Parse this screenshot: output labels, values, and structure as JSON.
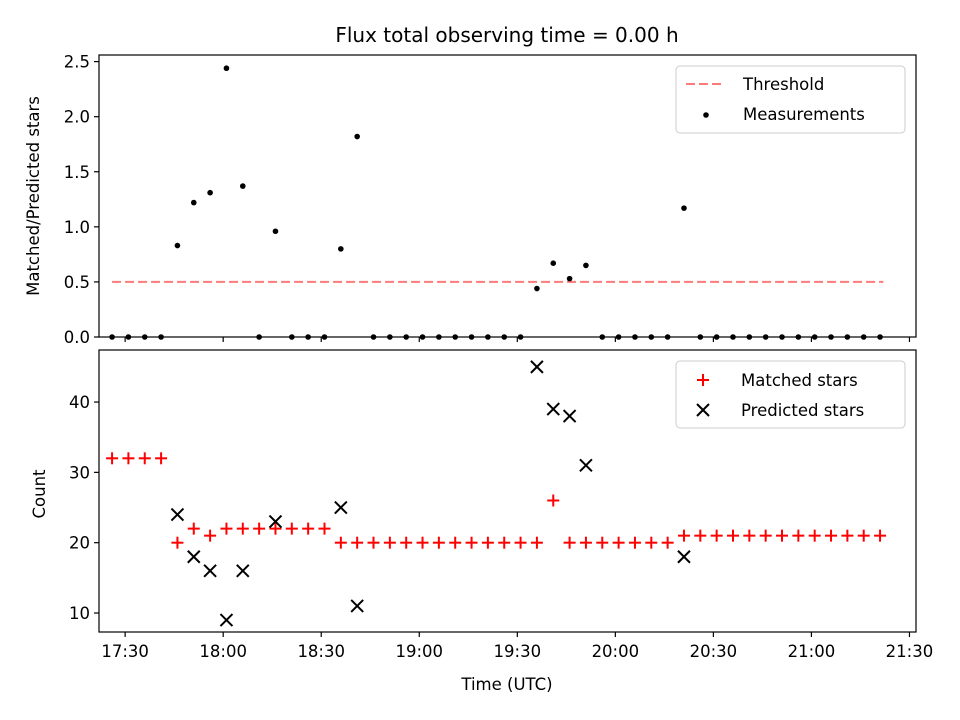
{
  "chart_data": {
    "type": "scatter",
    "title": "Flux total observing time = 0.00 h",
    "xlabel": "Time (UTC)",
    "xlim": [
      "17:22",
      "21:32"
    ],
    "x_ticks": [
      "17:30",
      "18:00",
      "18:30",
      "19:00",
      "19:30",
      "20:00",
      "20:30",
      "21:00",
      "21:30"
    ],
    "panels": [
      {
        "id": "ratio",
        "ylabel": "Matched/Predicted stars",
        "ylim": [
          0,
          2.56
        ],
        "y_ticks": [
          "0.0",
          "0.5",
          "1.0",
          "1.5",
          "2.0",
          "2.5"
        ],
        "legend_position": "upper right",
        "threshold": {
          "name": "Threshold",
          "y": 0.5,
          "x_start": "17:26",
          "x_end": "21:22",
          "color": "#ff7a7a",
          "style": "dashed"
        },
        "series": [
          {
            "name": "Measurements",
            "marker": "dot",
            "color": "#000000",
            "points": [
              [
                "17:26",
                0
              ],
              [
                "17:31",
                0
              ],
              [
                "17:36",
                0
              ],
              [
                "17:41",
                0
              ],
              [
                "17:46",
                0.83
              ],
              [
                "17:51",
                1.22
              ],
              [
                "17:56",
                1.31
              ],
              [
                "18:01",
                2.44
              ],
              [
                "18:06",
                1.37
              ],
              [
                "18:11",
                0
              ],
              [
                "18:16",
                0.96
              ],
              [
                "18:21",
                0
              ],
              [
                "18:26",
                0
              ],
              [
                "18:31",
                0
              ],
              [
                "18:36",
                0.8
              ],
              [
                "18:41",
                1.82
              ],
              [
                "18:46",
                0
              ],
              [
                "18:51",
                0
              ],
              [
                "18:56",
                0
              ],
              [
                "19:01",
                0
              ],
              [
                "19:06",
                0
              ],
              [
                "19:11",
                0
              ],
              [
                "19:16",
                0
              ],
              [
                "19:21",
                0
              ],
              [
                "19:26",
                0
              ],
              [
                "19:31",
                0
              ],
              [
                "19:36",
                0.44
              ],
              [
                "19:41",
                0.67
              ],
              [
                "19:46",
                0.53
              ],
              [
                "19:51",
                0.65
              ],
              [
                "19:56",
                0
              ],
              [
                "20:01",
                0
              ],
              [
                "20:06",
                0
              ],
              [
                "20:11",
                0
              ],
              [
                "20:16",
                0
              ],
              [
                "20:21",
                1.17
              ],
              [
                "20:26",
                0
              ],
              [
                "20:31",
                0
              ],
              [
                "20:36",
                0
              ],
              [
                "20:41",
                0
              ],
              [
                "20:46",
                0
              ],
              [
                "20:51",
                0
              ],
              [
                "20:56",
                0
              ],
              [
                "21:01",
                0
              ],
              [
                "21:06",
                0
              ],
              [
                "21:11",
                0
              ],
              [
                "21:16",
                0
              ],
              [
                "21:21",
                0
              ]
            ]
          }
        ]
      },
      {
        "id": "count",
        "ylabel": "Count",
        "ylim": [
          7.3,
          47.4
        ],
        "y_ticks": [
          "10",
          "20",
          "30",
          "40"
        ],
        "legend_position": "upper right",
        "series": [
          {
            "name": "Matched stars",
            "marker": "plus",
            "color": "#ff0000",
            "points": [
              [
                "17:26",
                32
              ],
              [
                "17:31",
                32
              ],
              [
                "17:36",
                32
              ],
              [
                "17:41",
                32
              ],
              [
                "17:46",
                20
              ],
              [
                "17:51",
                22
              ],
              [
                "17:56",
                21
              ],
              [
                "18:01",
                22
              ],
              [
                "18:06",
                22
              ],
              [
                "18:11",
                22
              ],
              [
                "18:16",
                22
              ],
              [
                "18:21",
                22
              ],
              [
                "18:26",
                22
              ],
              [
                "18:31",
                22
              ],
              [
                "18:36",
                20
              ],
              [
                "18:41",
                20
              ],
              [
                "18:46",
                20
              ],
              [
                "18:51",
                20
              ],
              [
                "18:56",
                20
              ],
              [
                "19:01",
                20
              ],
              [
                "19:06",
                20
              ],
              [
                "19:11",
                20
              ],
              [
                "19:16",
                20
              ],
              [
                "19:21",
                20
              ],
              [
                "19:26",
                20
              ],
              [
                "19:31",
                20
              ],
              [
                "19:36",
                20
              ],
              [
                "19:41",
                26
              ],
              [
                "19:46",
                20
              ],
              [
                "19:51",
                20
              ],
              [
                "19:56",
                20
              ],
              [
                "20:01",
                20
              ],
              [
                "20:06",
                20
              ],
              [
                "20:11",
                20
              ],
              [
                "20:16",
                20
              ],
              [
                "20:21",
                21
              ],
              [
                "20:26",
                21
              ],
              [
                "20:31",
                21
              ],
              [
                "20:36",
                21
              ],
              [
                "20:41",
                21
              ],
              [
                "20:46",
                21
              ],
              [
                "20:51",
                21
              ],
              [
                "20:56",
                21
              ],
              [
                "21:01",
                21
              ],
              [
                "21:06",
                21
              ],
              [
                "21:11",
                21
              ],
              [
                "21:16",
                21
              ],
              [
                "21:21",
                21
              ]
            ]
          },
          {
            "name": "Predicted stars",
            "marker": "x",
            "color": "#000000",
            "points": [
              [
                "17:46",
                24
              ],
              [
                "17:51",
                18
              ],
              [
                "17:56",
                16
              ],
              [
                "18:01",
                9
              ],
              [
                "18:06",
                16
              ],
              [
                "18:16",
                23
              ],
              [
                "18:36",
                25
              ],
              [
                "18:41",
                11
              ],
              [
                "19:36",
                45
              ],
              [
                "19:41",
                39
              ],
              [
                "19:46",
                38
              ],
              [
                "19:51",
                31
              ],
              [
                "20:21",
                18
              ]
            ]
          }
        ]
      }
    ]
  }
}
